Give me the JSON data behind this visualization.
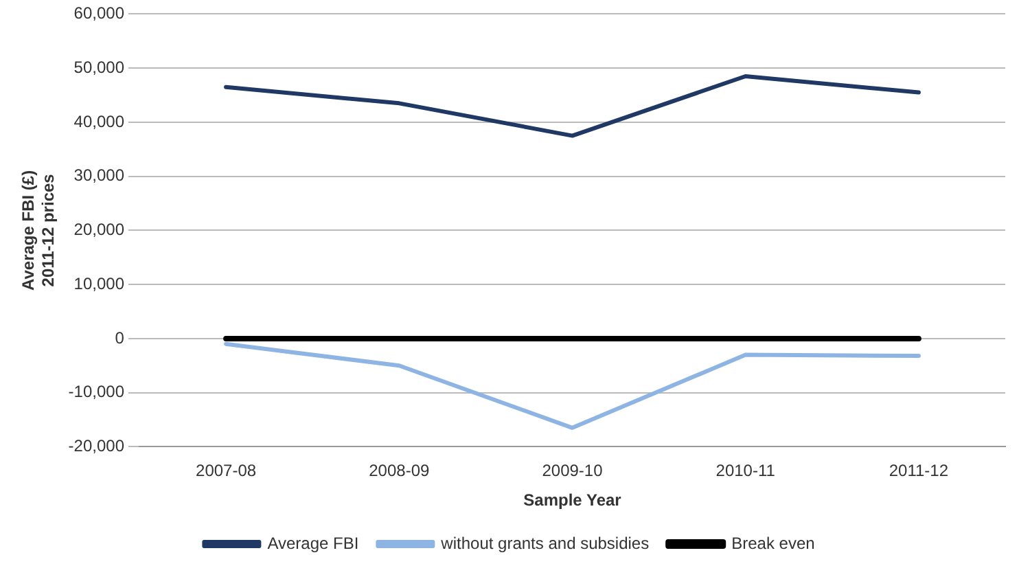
{
  "chart_data": {
    "type": "line",
    "xlabel": "Sample Year",
    "ylabel": "Average FBI (£)\n2011-12 prices",
    "categories": [
      "2007-08",
      "2008-09",
      "2009-10",
      "2010-11",
      "2011-12"
    ],
    "series": [
      {
        "name": "Average FBI",
        "color": "#1f3864",
        "values": [
          46500,
          43500,
          37500,
          48500,
          45500
        ]
      },
      {
        "name": "without grants and subsidies",
        "color": "#8eb4e3",
        "values": [
          -1000,
          -5000,
          -16500,
          -3000,
          -3200
        ]
      },
      {
        "name": "Break even",
        "color": "#000000",
        "values": [
          0,
          0,
          0,
          0,
          0
        ]
      }
    ],
    "ylim": [
      -20000,
      60000
    ],
    "yticks": [
      {
        "value": -20000,
        "label": "-20,000"
      },
      {
        "value": -10000,
        "label": "-10,000"
      },
      0,
      {
        "value": 10000,
        "label": "10,000"
      },
      {
        "value": 20000,
        "label": "20,000"
      },
      {
        "value": 30000,
        "label": "30,000"
      },
      {
        "value": 40000,
        "label": "40,000"
      },
      {
        "value": 50000,
        "label": "50,000"
      },
      {
        "value": 60000,
        "label": "60,000"
      }
    ],
    "grid": "y",
    "legend": "bottom",
    "marker": "none",
    "line_style": "solid"
  }
}
